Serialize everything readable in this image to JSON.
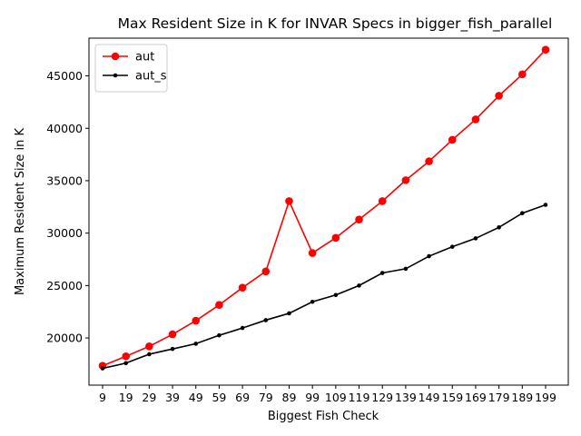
{
  "chart_data": {
    "type": "line",
    "title": "Max Resident Size in K for INVAR Specs in bigger_fish_parallel",
    "xlabel": "Biggest Fish Check",
    "ylabel": "Maximum Resident Size in K",
    "categories": [
      "9",
      "19",
      "29",
      "39",
      "49",
      "59",
      "69",
      "79",
      "89",
      "99",
      "109",
      "119",
      "129",
      "139",
      "149",
      "159",
      "169",
      "179",
      "189",
      "199"
    ],
    "ylim": [
      15500,
      48600
    ],
    "yticks": [
      20000,
      25000,
      30000,
      35000,
      40000,
      45000
    ],
    "ytick_labels": [
      "20000",
      "25000",
      "30000",
      "35000",
      "40000",
      "45000"
    ],
    "grid": false,
    "legend_position": "top-left",
    "series": [
      {
        "name": "aut",
        "color": "#ff0000",
        "marker": "large-dot",
        "values": [
          17350,
          18250,
          19200,
          20350,
          21650,
          23150,
          24800,
          26350,
          33050,
          28100,
          29550,
          31300,
          33050,
          35050,
          36850,
          38900,
          40850,
          43100,
          45150,
          47500
        ]
      },
      {
        "name": "aut_s",
        "color": "#000000",
        "marker": "small-dot",
        "values": [
          17100,
          17600,
          18450,
          18950,
          19450,
          20250,
          20950,
          21700,
          22350,
          23450,
          24100,
          25000,
          26200,
          26600,
          27800,
          28700,
          29500,
          30550,
          31900,
          32700
        ]
      }
    ]
  }
}
